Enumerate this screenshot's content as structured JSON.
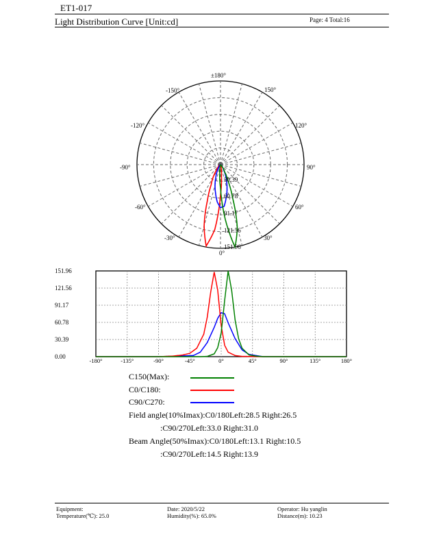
{
  "header": {
    "doc_id": "ET1-017",
    "title": "Light Distribution Curve [Unit:cd]",
    "page_info": "Page: 4  Total:16"
  },
  "polar": {
    "angle_labels": [
      "±180°",
      "150°",
      "-150°",
      "120°",
      "-120°",
      "90°",
      "-90°",
      "60°",
      "-60°",
      "30°",
      "-30°",
      "0°"
    ],
    "radial_labels": [
      "30.39",
      "60.78",
      "91.17",
      "121.56",
      "151.96"
    ]
  },
  "chart_data": [
    {
      "type": "line",
      "title": "",
      "xlabel": "",
      "ylabel": "",
      "x_ticks": [
        "-180°",
        "-135°",
        "-90°",
        "-45°",
        "0°",
        "45°",
        "90°",
        "135°",
        "180°"
      ],
      "y_ticks": [
        "0.00",
        "30.39",
        "60.78",
        "91.17",
        "121.56",
        "151.96"
      ],
      "xlim": [
        -180,
        180
      ],
      "ylim": [
        0,
        151.96
      ],
      "grid": true,
      "series": [
        {
          "name": "C150(Max):",
          "color": "#008000",
          "x": [
            -180,
            -90,
            -45,
            -30,
            -20,
            -10,
            -5,
            0,
            5,
            10,
            15,
            20,
            25,
            30,
            40,
            50,
            60,
            90,
            180
          ],
          "y": [
            0,
            0,
            0,
            0,
            0.5,
            5,
            16,
            42,
            100,
            151.96,
            118,
            65,
            32,
            15,
            3,
            1,
            0,
            0,
            0
          ]
        },
        {
          "name": "C0/C180:",
          "color": "#ff0000",
          "x": [
            -180,
            -90,
            -70,
            -55,
            -45,
            -35,
            -25,
            -20,
            -15,
            -10,
            -5,
            0,
            5,
            10,
            20,
            30,
            60,
            90,
            180
          ],
          "y": [
            0,
            0,
            1,
            3,
            6,
            15,
            40,
            70,
            115,
            150,
            118,
            55,
            20,
            8,
            2,
            0.5,
            0,
            0,
            0
          ]
        },
        {
          "name": "C90/C270:",
          "color": "#0000ff",
          "x": [
            -180,
            -90,
            -40,
            -30,
            -20,
            -10,
            -5,
            0,
            5,
            10,
            20,
            30,
            40,
            60,
            90,
            180
          ],
          "y": [
            0,
            0,
            2,
            8,
            25,
            52,
            68,
            78,
            76,
            60,
            32,
            12,
            4,
            0,
            0,
            0
          ]
        }
      ]
    }
  ],
  "legend": {
    "c150": {
      "label": "C150(Max):",
      "color": "#008000"
    },
    "c0": {
      "label": "C0/C180:",
      "color": "#ff0000"
    },
    "c90": {
      "label": "C90/C270:",
      "color": "#0000ff"
    }
  },
  "angles": {
    "field_title": "Field angle(10%Imax):C0/180Left:28.5 Right:26.5",
    "field_c90": ":C90/270Left:33.0 Right:31.0",
    "beam_title": "Beam Angle(50%Imax):C0/180Left:13.1 Right:10.5",
    "beam_c90": ":C90/270Left:14.5 Right:13.9"
  },
  "footer": {
    "equipment": "Equipment:",
    "temperature": "Temperature(℃): 25.0",
    "date": "Date: 2020/5/22",
    "humidity": "Humidity(%): 65.0%",
    "operator": "Operator: Hu yanglin",
    "distance": "Distance(m): 10.23"
  }
}
